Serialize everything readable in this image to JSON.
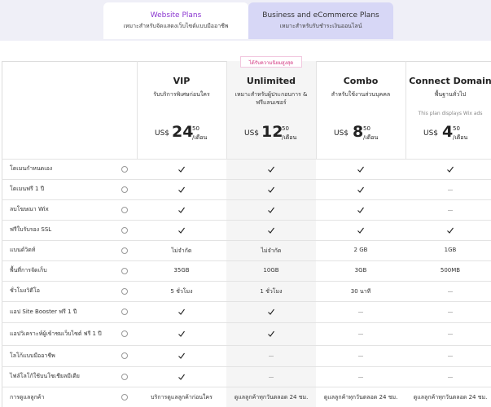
{
  "tabs": [
    {
      "title": "Website Plans",
      "subtitle": "เหมาะสำหรับจัดแสดงเว็บไซต์แบบมืออาชีพ"
    },
    {
      "title": "Business and eCommerce Plans",
      "subtitle": "เหมาะสำหรับรับชำระเงินออนไลน์"
    }
  ],
  "badge": "ได้รับความนิยมสูงสุด",
  "plans": [
    {
      "name": "VIP",
      "description": "รับบริการพิเศษก่อนใคร",
      "currency": "US$",
      "price_whole": 24,
      "price_fraction": 50,
      "period": "/เดือน"
    },
    {
      "name": "Unlimited",
      "description": "เหมาะสำหรับผู้ประกอบการ & ฟรีแลนเซอร์",
      "currency": "US$",
      "price_whole": 12,
      "price_fraction": 50,
      "period": "/เดือน"
    },
    {
      "name": "Combo",
      "description": "สำหรับใช้งานส่วนบุคคล",
      "currency": "US$",
      "price_whole": 8,
      "price_fraction": 50,
      "period": "/เดือน"
    },
    {
      "name": "Connect Domain",
      "description": "พื้นฐานทั่วไป",
      "note": "This plan displays Wix ads",
      "currency": "US$",
      "price_whole": 4,
      "price_fraction": 50,
      "period": "/เดือน"
    }
  ],
  "features": [
    {
      "label": "โดเมนกำหนดเอง",
      "cells": [
        true,
        true,
        true,
        true
      ]
    },
    {
      "label": "โดเมนฟรี 1 ปี",
      "cells": [
        true,
        true,
        true,
        false
      ]
    },
    {
      "label": "ลบโฆษณา Wix",
      "cells": [
        true,
        true,
        true,
        false
      ]
    },
    {
      "label": "ฟรีใบรับรอง SSL",
      "cells": [
        true,
        true,
        true,
        true
      ]
    },
    {
      "label": "แบนด์วิดท์",
      "cells": [
        "ไม่จำกัด",
        "ไม่จำกัด",
        "2 GB",
        "1GB"
      ]
    },
    {
      "label": "พื้นที่การจัดเก็บ",
      "cells": [
        "35GB",
        "10GB",
        "3GB",
        "500MB"
      ]
    },
    {
      "label": "ชั่วโมงวิดีโอ",
      "cells": [
        "5 ชั่วโมง",
        "1 ชั่วโมง",
        "30 นาที",
        false
      ]
    },
    {
      "label": "แอป Site Booster ฟรี 1 ปี",
      "cells": [
        true,
        true,
        false,
        false
      ]
    },
    {
      "label": "แอปวิเคราะห์ผู้เข้าชมเว็บไซต์ ฟรี 1 ปี",
      "cells": [
        true,
        true,
        false,
        false
      ]
    },
    {
      "label": "โลโก้แบบมืออาชีพ",
      "cells": [
        true,
        false,
        false,
        false
      ]
    },
    {
      "label": "ไฟล์โลโก้ใช้บนโซเชียลมีเดีย",
      "cells": [
        true,
        false,
        false,
        false
      ]
    },
    {
      "label": "การดูแลลูกค้า",
      "cells": [
        "บริการดูแลลูกค้าก่อนใคร",
        "ดูแลลูกค้าทุกวันตลอด 24 ชม.",
        "ดูแลลูกค้าทุกวันตลอด 24 ชม.",
        "ดูแลลูกค้าทุกวันตลอด 24 ชม."
      ]
    }
  ]
}
